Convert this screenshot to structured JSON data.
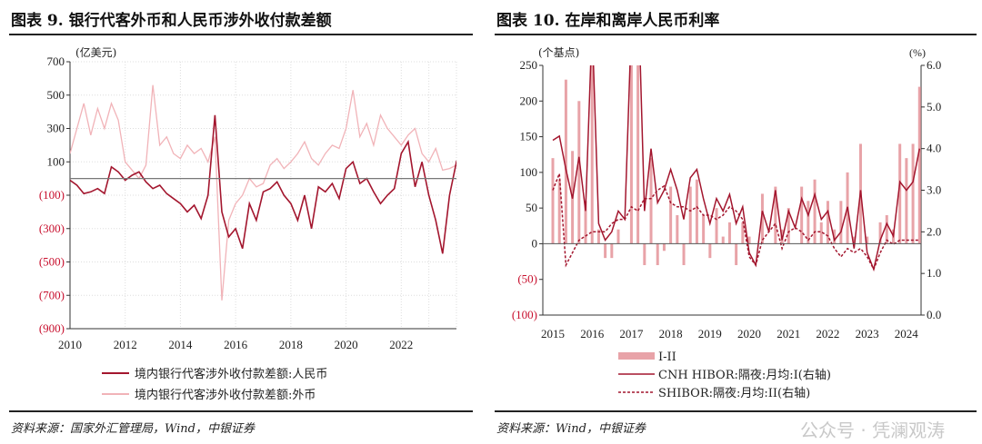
{
  "left": {
    "title": "图表 9. 银行代客外币和人民币涉外收付款差额",
    "source": "资料来源：国家外汇管理局，Wind，中银证券",
    "chart_data": {
      "type": "line",
      "ylabel": "(亿美元)",
      "ylim": [
        -900,
        700
      ],
      "yticks": [
        700,
        500,
        300,
        100,
        -100,
        -300,
        -500,
        -700,
        -900
      ],
      "ytick_labels": [
        "700",
        "500",
        "300",
        "100",
        "(100)",
        "(300)",
        "(500)",
        "(700)",
        "(900)"
      ],
      "xlim": [
        2010,
        2024
      ],
      "xticks": [
        2010,
        2012,
        2014,
        2016,
        2018,
        2020,
        2022
      ],
      "grid": true,
      "legend_placement": "bottom",
      "x_start": 2010,
      "x_step_years": 0.25,
      "series": [
        {
          "name": "境内银行代客涉外收付款差额:人民币",
          "color": "#a3162e",
          "values": [
            -10,
            -40,
            -90,
            -80,
            -60,
            -90,
            70,
            40,
            -10,
            20,
            40,
            -20,
            -60,
            -40,
            -90,
            -120,
            -150,
            -200,
            -160,
            -240,
            -100,
            380,
            -200,
            -350,
            -300,
            -420,
            -150,
            -250,
            -80,
            -60,
            -20,
            -100,
            -150,
            -250,
            -100,
            -300,
            -50,
            -80,
            -30,
            -120,
            60,
            100,
            -30,
            0,
            -80,
            -150,
            -100,
            -60,
            150,
            220,
            -50,
            100,
            -100,
            -250,
            -450,
            -100,
            100,
            50,
            -350
          ]
        },
        {
          "name": "境内银行代客涉外收付款差额:外币",
          "color": "#f1b3b8",
          "values": [
            150,
            300,
            450,
            260,
            420,
            300,
            450,
            350,
            100,
            50,
            0,
            80,
            560,
            200,
            250,
            150,
            120,
            200,
            150,
            180,
            100,
            250,
            -730,
            -250,
            -150,
            -100,
            0,
            -50,
            -30,
            80,
            120,
            60,
            100,
            150,
            220,
            120,
            80,
            150,
            200,
            180,
            300,
            530,
            250,
            330,
            200,
            380,
            300,
            250,
            200,
            260,
            300,
            150,
            100,
            180,
            50,
            60,
            80,
            20,
            -20
          ]
        }
      ]
    }
  },
  "right": {
    "title": "图表 10. 在岸和离岸人民币利率",
    "source": "资料来源：Wind，中银证券",
    "chart_data": {
      "type": "bar+line",
      "ylabel_left": "(个基点)",
      "ylabel_right": "(%)",
      "ylim_left": [
        -100,
        250
      ],
      "yticks_left": [
        250,
        200,
        150,
        100,
        50,
        0,
        -50,
        -100
      ],
      "ytick_labels_left": [
        "250",
        "200",
        "150",
        "100",
        "50",
        "0",
        "(50)",
        "(100)"
      ],
      "ylim_right": [
        0,
        6
      ],
      "yticks_right": [
        "6.0",
        "5.0",
        "4.0",
        "3.0",
        "2.0",
        "1.0",
        "0.0"
      ],
      "xlim": [
        2014.75,
        2024.4
      ],
      "xticks": [
        2015,
        2016,
        2017,
        2018,
        2019,
        2020,
        2021,
        2022,
        2023,
        2024
      ],
      "legend_placement": "bottom",
      "x_start": 2015,
      "x_step_years": 0.1667,
      "series": [
        {
          "name": "I-II",
          "axis": "left",
          "kind": "bar",
          "color": "#e8a3a8",
          "values": [
            120,
            90,
            230,
            130,
            200,
            60,
            500,
            20,
            -20,
            -20,
            20,
            0,
            440,
            550,
            -30,
            120,
            -30,
            -10,
            80,
            40,
            -30,
            80,
            90,
            40,
            -20,
            50,
            10,
            30,
            -30,
            30,
            10,
            0,
            70,
            0,
            80,
            20,
            50,
            0,
            80,
            60,
            90,
            30,
            60,
            20,
            60,
            100,
            10,
            140,
            10,
            0,
            30,
            40,
            20,
            140,
            120,
            140,
            220
          ]
        },
        {
          "name": "CNH HIBOR:隔夜:月均:I(右轴)",
          "axis": "right",
          "kind": "line",
          "color": "#a3162e",
          "values": [
            4.2,
            4.3,
            3.5,
            2.8,
            3.8,
            2.5,
            7.0,
            2.2,
            1.8,
            2.0,
            2.5,
            2.3,
            7.0,
            8.0,
            2.5,
            4.0,
            2.7,
            3.0,
            3.5,
            3.0,
            2.3,
            3.3,
            3.5,
            2.8,
            2.2,
            2.8,
            2.5,
            2.9,
            2.2,
            2.6,
            1.5,
            1.2,
            2.5,
            2.0,
            3.0,
            1.8,
            2.5,
            2.1,
            2.8,
            2.4,
            2.9,
            2.3,
            2.5,
            1.8,
            2.0,
            2.6,
            1.6,
            3.0,
            1.5,
            1.1,
            1.8,
            2.2,
            1.9,
            3.2,
            3.0,
            3.2,
            4.0
          ]
        },
        {
          "name": "SHIBOR:隔夜:月均:II(右轴)",
          "axis": "right",
          "kind": "dashed-line",
          "color": "#a3162e",
          "values": [
            3.0,
            3.4,
            1.2,
            1.5,
            1.8,
            1.9,
            2.0,
            2.0,
            2.0,
            2.2,
            2.3,
            2.3,
            2.6,
            2.5,
            2.8,
            2.8,
            3.0,
            3.1,
            2.7,
            2.6,
            2.6,
            2.5,
            2.6,
            2.4,
            2.4,
            2.3,
            2.4,
            2.6,
            2.5,
            2.3,
            1.4,
            1.2,
            1.8,
            2.0,
            2.2,
            1.6,
            2.0,
            2.1,
            2.0,
            1.8,
            2.0,
            2.0,
            1.9,
            1.6,
            1.4,
            1.6,
            1.5,
            1.6,
            1.4,
            1.1,
            1.5,
            1.8,
            1.7,
            1.8,
            1.8,
            1.8,
            1.8
          ]
        }
      ]
    }
  },
  "watermark": "公众号 · 凭澜观涛"
}
